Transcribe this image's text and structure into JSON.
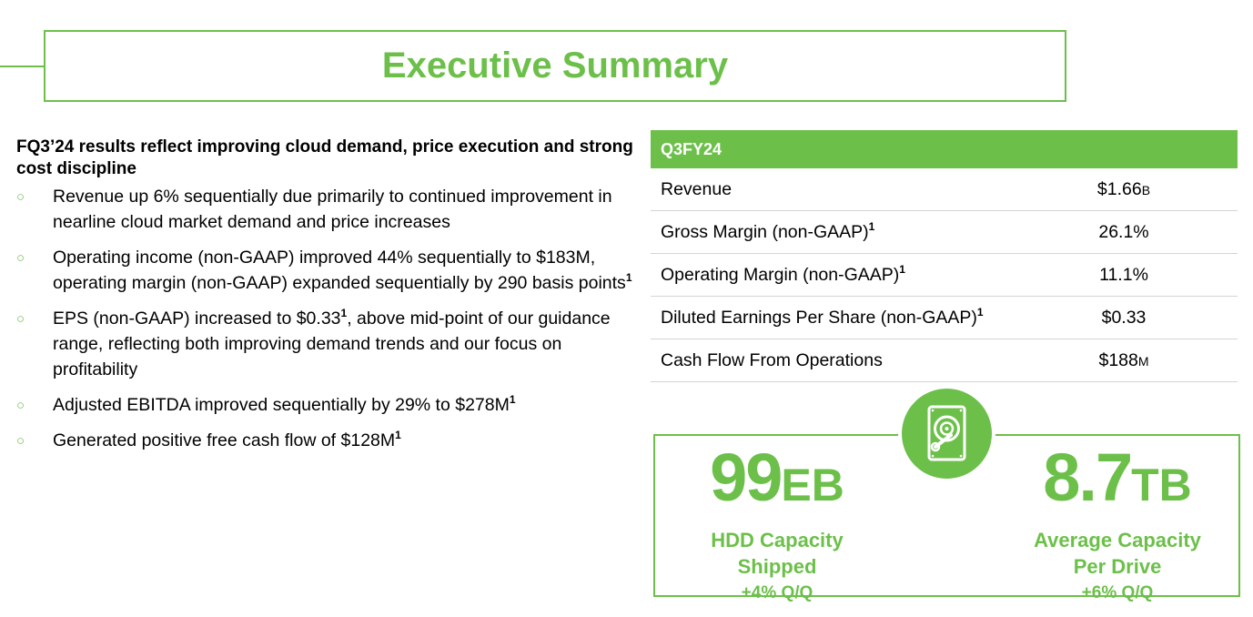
{
  "title": "Executive Summary",
  "summary": {
    "headline": "FQ3’24 results reflect improving cloud demand, price execution and strong cost discipline",
    "bullet_marker": "○",
    "bullets": [
      {
        "text": "Revenue up 6% sequentially due primarily to continued improvement in nearline cloud market demand and price increases",
        "footnote": ""
      },
      {
        "text": "Operating income (non-GAAP) improved 44% sequentially to $183M, operating margin (non-GAAP) expanded sequentially by 290 basis points",
        "footnote": "1"
      },
      {
        "text_before": "EPS (non-GAAP) increased to $0.33",
        "footnote": "1",
        "text_after": ", above mid-point of our guidance range, reflecting both improving demand trends and our focus on profitability"
      },
      {
        "text": "Adjusted EBITDA improved sequentially by 29% to $278M",
        "footnote": "1"
      },
      {
        "text": "Generated positive free cash flow of $128M",
        "footnote": "1"
      }
    ]
  },
  "table": {
    "header": "Q3FY24",
    "rows": [
      {
        "label": "Revenue",
        "footnote": "",
        "value": "$1.66",
        "unit": "B"
      },
      {
        "label": "Gross Margin (non-GAAP)",
        "footnote": "1",
        "value": "26.1%",
        "unit": ""
      },
      {
        "label": "Operating Margin (non-GAAP)",
        "footnote": "1",
        "value": "11.1%",
        "unit": ""
      },
      {
        "label": "Diluted Earnings Per Share (non-GAAP)",
        "footnote": "1",
        "value": "$0.33",
        "unit": ""
      },
      {
        "label": "Cash Flow From Operations",
        "footnote": "",
        "value": "$188",
        "unit": "M"
      }
    ]
  },
  "kpis": [
    {
      "number": "99",
      "unit": "EB",
      "label_line1": "HDD Capacity",
      "label_line2": "Shipped",
      "change": "+4% Q/Q"
    },
    {
      "number": "8.7",
      "unit": "TB",
      "label_line1": "Average Capacity",
      "label_line2": "Per Drive",
      "change": "+6% Q/Q"
    }
  ],
  "icon": "hard-drive-icon",
  "colors": {
    "accent": "#6cc04a",
    "divider": "#d4d4d4"
  }
}
